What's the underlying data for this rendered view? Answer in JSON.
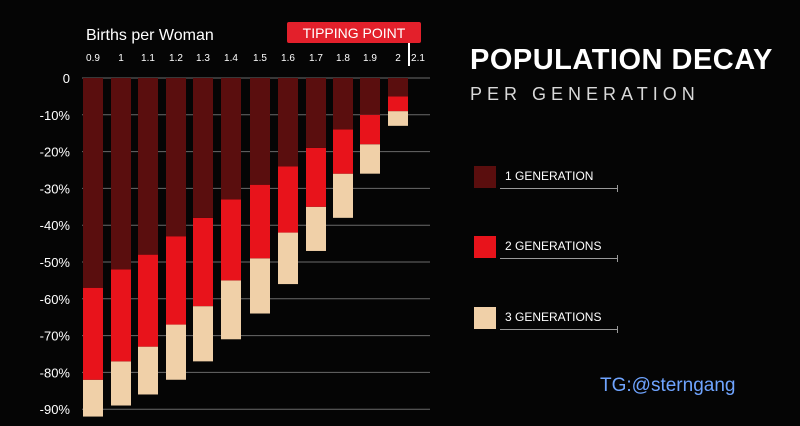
{
  "title": "POPULATION DECAY",
  "subtitle": "PER GENERATION",
  "watermark": "TG:@sterngang",
  "colors": {
    "background": "#050505",
    "gen1": "#5a0e0e",
    "gen2": "#e8131b",
    "gen3": "#f0d0a8",
    "tipping_tag": "#e3202b",
    "grid": "#6a6a6a",
    "watermark": "#6fa4ff"
  },
  "legend": [
    {
      "label": "1 GENERATION",
      "color": "#5a0e0e"
    },
    {
      "label": "2 GENERATIONS",
      "color": "#e8131b"
    },
    {
      "label": "3 GENERATIONS",
      "color": "#f0d0a8"
    }
  ],
  "chart_data": {
    "type": "bar",
    "subtype": "stacked-downward",
    "xlabel": "Births per Woman",
    "x_axis_position": "top",
    "annotation": "TIPPING POINT",
    "annotation_at": "2.1",
    "categories": [
      "0.9",
      "1",
      "1.1",
      "1.2",
      "1.3",
      "1.4",
      "1.5",
      "1.6",
      "1.7",
      "1.8",
      "1.9",
      "2",
      "2.1"
    ],
    "y_ticks": [
      "0",
      "-10%",
      "-20%",
      "-30%",
      "-40%",
      "-50%",
      "-60%",
      "-70%",
      "-80%",
      "-90%"
    ],
    "ylim": [
      -90,
      0
    ],
    "grid": true,
    "series": [
      {
        "name": "1 GENERATION",
        "values": [
          -57,
          -52,
          -48,
          -43,
          -38,
          -33,
          -29,
          -24,
          -19,
          -14,
          -10,
          -5,
          0
        ]
      },
      {
        "name": "2 GENERATIONS",
        "values": [
          -82,
          -77,
          -73,
          -67,
          -62,
          -55,
          -49,
          -42,
          -35,
          -26,
          -18,
          -9,
          0
        ]
      },
      {
        "name": "3 GENERATIONS",
        "values": [
          -92,
          -89,
          -86,
          -82,
          -77,
          -71,
          -64,
          -56,
          -47,
          -38,
          -26,
          -13,
          0
        ]
      }
    ]
  }
}
